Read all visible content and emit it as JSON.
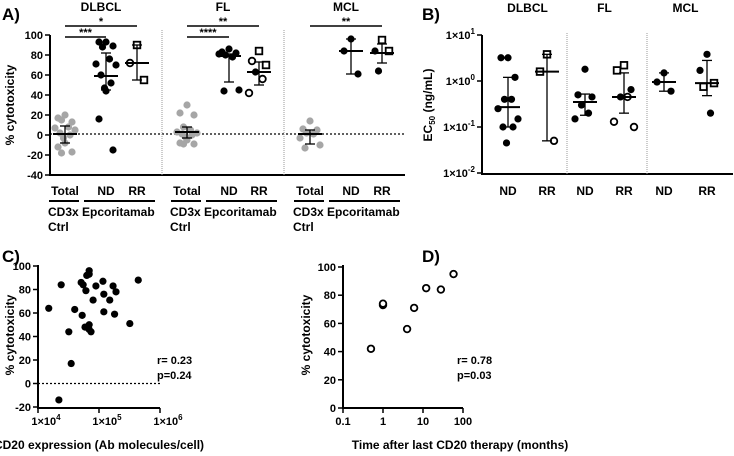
{
  "panel_labels": {
    "a": "A)",
    "b": "B)",
    "c": "C)",
    "d": "D)"
  },
  "chart_data": [
    {
      "id": "A",
      "type": "scatter",
      "ylabel": "% cytotoxicity",
      "ylim": [
        -40,
        100
      ],
      "yticks": [
        100,
        80,
        60,
        40,
        20,
        0,
        -20,
        -40
      ],
      "reference_line": 0,
      "groups": [
        {
          "title": "DLBCL",
          "sig": [
            {
              "label": "*",
              "from": "Total",
              "to": "RR"
            },
            {
              "label": "***",
              "from": "Total",
              "to": "ND"
            }
          ],
          "columns": [
            {
              "label": "Total",
              "marker": "grey",
              "values": [
                20,
                17,
                13,
                15,
                8,
                7,
                5,
                2,
                0,
                -3,
                -8,
                -12,
                -17,
                -18
              ],
              "median": 1,
              "range": [
                -8,
                9
              ]
            },
            {
              "label": "ND",
              "marker": "filled",
              "values": [
                93,
                93,
                89,
                88,
                76,
                71,
                70,
                60,
                52,
                47,
                44,
                16,
                -15
              ],
              "median": 59,
              "range": [
                45,
                82
              ]
            },
            {
              "label": "RR",
              "marker": [
                "square",
                "circle",
                "square"
              ],
              "values": [
                90,
                72,
                55
              ],
              "median": 72,
              "range": [
                55,
                90
              ]
            }
          ]
        },
        {
          "title": "FL",
          "sig": [
            {
              "label": "**",
              "from": "Total",
              "to": "RR"
            },
            {
              "label": "****",
              "from": "Total",
              "to": "ND"
            }
          ],
          "columns": [
            {
              "label": "Total",
              "marker": "grey",
              "values": [
                30,
                22,
                20,
                8,
                5,
                3,
                2,
                1,
                0,
                -2,
                -5,
                -8,
                -9,
                -9
              ],
              "median": 3,
              "range": [
                -3,
                8
              ]
            },
            {
              "label": "ND",
              "marker": "filled",
              "values": [
                86,
                83,
                82,
                80,
                78,
                81,
                45,
                44
              ],
              "median": 79,
              "range": [
                53,
                81
              ]
            },
            {
              "label": "RR",
              "marker": [
                "square",
                "circle",
                "square",
                "filled",
                "circle",
                "circle"
              ],
              "values": [
                84,
                74,
                70,
                63,
                56,
                42
              ],
              "median": 63,
              "range": [
                50,
                73
              ]
            }
          ]
        },
        {
          "title": "MCL",
          "sig": [
            {
              "label": "**",
              "from": "Total",
              "to": "RR"
            }
          ],
          "columns": [
            {
              "label": "Total",
              "marker": "grey",
              "values": [
                14,
                6,
                5,
                2,
                1,
                -3,
                -10,
                -13
              ],
              "median": 1,
              "range": [
                -9,
                5
              ]
            },
            {
              "label": "ND",
              "marker": "filled",
              "values": [
                96,
                84,
                61
              ],
              "median": 84,
              "range": [
                61,
                96
              ]
            },
            {
              "label": "RR",
              "marker": [
                "square",
                "filled",
                "square",
                "filled"
              ],
              "values": [
                95,
                84,
                84,
                64
              ],
              "median": 82,
              "range": [
                72,
                91
              ]
            }
          ]
        }
      ],
      "group_labels": {
        "ctrl_line1": "CD3x",
        "ctrl_line2": "Ctrl",
        "treatment": "Epcoritamab"
      }
    },
    {
      "id": "B",
      "type": "scatter",
      "ylabel": "EC",
      "ylabel_sub": "50",
      "ylabel_unit": " (ng/mL)",
      "yscale": "log",
      "ylim": [
        0.01,
        10
      ],
      "yticks": [
        {
          "base": "1×10",
          "exp": "1"
        },
        {
          "base": "1×10",
          "exp": "0"
        },
        {
          "base": "1×10",
          "exp": "-1"
        },
        {
          "base": "1×10",
          "exp": "-2"
        }
      ],
      "groups": [
        {
          "title": "DLBCL",
          "columns": [
            {
              "label": "ND",
              "marker": "filled",
              "values": [
                3.2,
                3.2,
                1.2,
                0.4,
                0.4,
                0.25,
                0.15,
                0.1,
                0.1,
                0.045
              ],
              "median": 0.27,
              "range": [
                0.1,
                1.2
              ]
            },
            {
              "label": "RR",
              "marker": [
                "square",
                "square",
                "circle"
              ],
              "values": [
                3.8,
                1.6,
                0.05
              ],
              "median": 1.6,
              "range": [
                0.05,
                3.8
              ]
            }
          ]
        },
        {
          "title": "FL",
          "columns": [
            {
              "label": "ND",
              "marker": "filled",
              "values": [
                1.8,
                0.5,
                0.45,
                0.3,
                0.2,
                0.15
              ],
              "median": 0.35,
              "range": [
                0.18,
                0.52
              ]
            },
            {
              "label": "RR",
              "marker": [
                "square",
                "square",
                "filled",
                "filled",
                "circle",
                "circle",
                "circle"
              ],
              "values": [
                2.2,
                1.7,
                0.65,
                0.45,
                0.45,
                0.13,
                0.1
              ],
              "median": 0.45,
              "range": [
                0.2,
                1.5
              ]
            }
          ]
        },
        {
          "title": "MCL",
          "columns": [
            {
              "label": "ND",
              "marker": "filled",
              "values": [
                1.5,
                0.95,
                0.6
              ],
              "median": 0.95,
              "range": [
                0.6,
                1.5
              ]
            },
            {
              "label": "RR",
              "marker": [
                "filled",
                "filled",
                "square",
                "square",
                "filled"
              ],
              "values": [
                3.8,
                1.7,
                0.9,
                0.75,
                0.2
              ],
              "median": 0.9,
              "range": [
                0.48,
                2.8
              ]
            }
          ]
        }
      ]
    },
    {
      "id": "C",
      "type": "scatter",
      "xlabel": "CD20 expression (Ab molecules/cell)",
      "ylabel": "% cytotoxicity",
      "xscale": "log",
      "xlim": [
        10000,
        1000000
      ],
      "ylim": [
        -20,
        100
      ],
      "xticks": [
        {
          "base": "1×10",
          "exp": "4"
        },
        {
          "base": "1×10",
          "exp": "5"
        },
        {
          "base": "1×10",
          "exp": "6"
        }
      ],
      "yticks": [
        100,
        80,
        60,
        40,
        20,
        0,
        -20
      ],
      "reference_line": 0,
      "stats": {
        "r": "r= 0.23",
        "p": "p=0.24"
      },
      "points": [
        [
          15000,
          64
        ],
        [
          24000,
          84
        ],
        [
          22000,
          -14
        ],
        [
          32000,
          44
        ],
        [
          35000,
          17
        ],
        [
          40000,
          63
        ],
        [
          51000,
          86
        ],
        [
          53000,
          58
        ],
        [
          55000,
          84
        ],
        [
          59000,
          48
        ],
        [
          61000,
          79
        ],
        [
          63000,
          92
        ],
        [
          69000,
          93
        ],
        [
          69000,
          96
        ],
        [
          69000,
          46
        ],
        [
          69000,
          50
        ],
        [
          74000,
          44
        ],
        [
          80000,
          71
        ],
        [
          89000,
          83
        ],
        [
          116000,
          87
        ],
        [
          120000,
          76
        ],
        [
          120000,
          61
        ],
        [
          150000,
          71
        ],
        [
          170000,
          83
        ],
        [
          180000,
          59
        ],
        [
          190000,
          78
        ],
        [
          320000,
          51
        ],
        [
          440000,
          88
        ]
      ]
    },
    {
      "id": "D",
      "type": "scatter",
      "xlabel": "Time after last CD20 therapy (months)",
      "ylabel": "% cytotoxicity",
      "xscale": "log",
      "xlim": [
        0.1,
        100
      ],
      "ylim": [
        0,
        100
      ],
      "xticks": [
        "0.1",
        "1",
        "10",
        "100"
      ],
      "yticks": [
        100,
        80,
        60,
        40,
        20,
        0
      ],
      "stats": {
        "r": "r= 0.78",
        "p": "p=0.03"
      },
      "points": [
        [
          0.5,
          42
        ],
        [
          1,
          73
        ],
        [
          1,
          74
        ],
        [
          4,
          56
        ],
        [
          6,
          71
        ],
        [
          12,
          85
        ],
        [
          28,
          84
        ],
        [
          58,
          95
        ]
      ]
    }
  ]
}
